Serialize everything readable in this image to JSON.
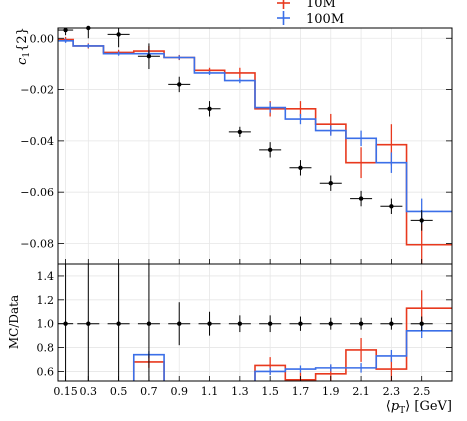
{
  "chart_data": [
    {
      "panel": "main",
      "type": "step+errorbar",
      "ylabel": "c_1{2}",
      "ylim": [
        -0.088,
        0.004
      ],
      "yticks": [
        0.0,
        -0.02,
        -0.04,
        -0.06,
        -0.08
      ],
      "ytick_labels": [
        "0.00",
        "−0.02",
        "−0.04",
        "−0.06",
        "−0.08"
      ],
      "grid": true,
      "legend": {
        "placement": "top-right",
        "entries": [
          "10M",
          "100M"
        ]
      },
      "x_edges": [
        0.1,
        0.2,
        0.4,
        0.6,
        0.8,
        1.0,
        1.2,
        1.4,
        1.6,
        1.8,
        2.0,
        2.2,
        2.4,
        2.6,
        2.7
      ],
      "data_points": {
        "x": [
          0.15,
          0.3,
          0.5,
          0.7,
          0.9,
          1.1,
          1.3,
          1.5,
          1.7,
          1.9,
          2.1,
          2.3,
          2.5
        ],
        "y": [
          0.0032,
          0.004,
          0.0015,
          -0.007,
          -0.018,
          -0.0275,
          -0.0365,
          -0.0435,
          -0.0505,
          -0.0565,
          -0.0625,
          -0.0655,
          -0.071
        ],
        "yerr": [
          0.002,
          0.004,
          0.005,
          0.005,
          0.003,
          0.003,
          0.002,
          0.003,
          0.003,
          0.003,
          0.003,
          0.003,
          0.004
        ]
      },
      "series": [
        {
          "name": "10M",
          "color": "#e8391e",
          "values": [
            -0.0005,
            -0.003,
            -0.0055,
            -0.005,
            -0.0075,
            -0.0125,
            -0.0135,
            -0.0275,
            -0.0275,
            -0.0335,
            -0.0485,
            -0.0415,
            -0.0805
          ],
          "yerr": [
            0.001,
            0.001,
            0.001,
            0.002,
            0.001,
            0.001,
            0.002,
            0.003,
            0.003,
            0.004,
            0.006,
            0.008,
            0.011
          ]
        },
        {
          "name": "100M",
          "color": "#3b6fe8",
          "values": [
            -0.001,
            -0.003,
            -0.006,
            -0.006,
            -0.0075,
            -0.0135,
            -0.0165,
            -0.027,
            -0.0315,
            -0.036,
            -0.039,
            -0.0485,
            -0.0675
          ],
          "yerr": [
            0.0008,
            0.0008,
            0.0008,
            0.0015,
            0.0008,
            0.0008,
            0.001,
            0.002,
            0.002,
            0.002,
            0.003,
            0.004,
            0.005
          ]
        }
      ]
    },
    {
      "panel": "ratio",
      "type": "step+errorbar",
      "ylabel": "MC/Data",
      "xlabel": "⟨p_T⟩ [GeV]",
      "ylim": [
        0.52,
        1.5
      ],
      "yticks": [
        0.6,
        0.8,
        1.0,
        1.2,
        1.4
      ],
      "ytick_labels": [
        "0.6",
        "0.8",
        "1.0",
        "1.2",
        "1.4"
      ],
      "xticks": [
        0.15,
        0.3,
        0.5,
        0.7,
        0.9,
        1.1,
        1.3,
        1.5,
        1.7,
        1.9,
        2.1,
        2.3,
        2.5
      ],
      "xtick_labels": [
        "0.15",
        "0.3",
        "0.5",
        "0.7",
        "0.9",
        "1.1",
        "1.3",
        "1.5",
        "1.7",
        "1.9",
        "2.1",
        "2.3",
        "2.5"
      ],
      "grid": true,
      "x_edges": [
        0.1,
        0.2,
        0.4,
        0.6,
        0.8,
        1.0,
        1.2,
        1.4,
        1.6,
        1.8,
        2.0,
        2.2,
        2.4,
        2.6,
        2.7
      ],
      "data_points": {
        "x": [
          0.15,
          0.3,
          0.5,
          0.7,
          0.9,
          1.1,
          1.3,
          1.5,
          1.7,
          1.9,
          2.1,
          2.3,
          2.5
        ],
        "y": [
          1.0,
          1.0,
          1.0,
          1.0,
          1.0,
          1.0,
          1.0,
          1.0,
          1.0,
          1.0,
          1.0,
          1.0,
          1.0
        ],
        "yerr": [
          0.7,
          0.7,
          0.7,
          0.7,
          0.18,
          0.1,
          0.07,
          0.07,
          0.06,
          0.05,
          0.05,
          0.05,
          0.06
        ]
      },
      "series": [
        {
          "name": "10M",
          "color": "#e8391e",
          "values": [
            null,
            null,
            null,
            0.68,
            null,
            null,
            null,
            0.65,
            0.53,
            0.58,
            0.78,
            0.62,
            1.13
          ],
          "yerr": [
            0,
            0,
            0,
            0.05,
            0,
            0,
            0,
            0.07,
            0.06,
            0.07,
            0.1,
            0.12,
            0.15
          ]
        },
        {
          "name": "100M",
          "color": "#3b6fe8",
          "values": [
            null,
            null,
            null,
            0.74,
            null,
            null,
            null,
            0.6,
            0.62,
            0.63,
            0.63,
            0.73,
            0.94
          ],
          "yerr": [
            0,
            0,
            0,
            0.03,
            0,
            0,
            0,
            0.03,
            0.03,
            0.03,
            0.04,
            0.05,
            0.06
          ]
        }
      ]
    }
  ]
}
